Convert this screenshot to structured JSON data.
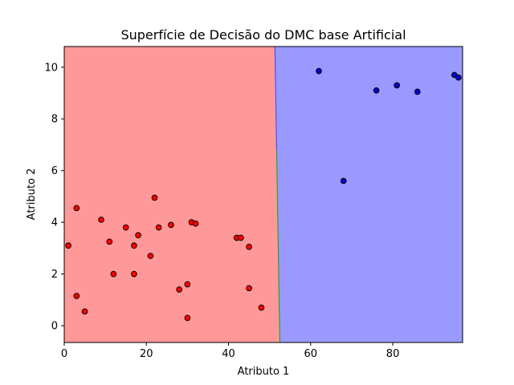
{
  "chart_data": {
    "type": "scatter",
    "title": "Superfície de Decisão do DMC base Artificial",
    "xlabel": "Atributo 1",
    "ylabel": "Atributo 2",
    "xlim": [
      0,
      97
    ],
    "ylim": [
      -0.65,
      10.8
    ],
    "xticks": [
      0,
      20,
      40,
      60,
      80
    ],
    "xtick_labels": [
      "0",
      "20",
      "40",
      "60",
      "80"
    ],
    "yticks": [
      0,
      2,
      4,
      6,
      8,
      10
    ],
    "ytick_labels": [
      "0",
      "2",
      "4",
      "6",
      "8",
      "10"
    ],
    "grid": false,
    "decision_regions": [
      {
        "class": "red",
        "color": "#ff9999",
        "x_range": [
          0,
          52.3
        ]
      },
      {
        "class": "blue",
        "color": "#9999ff",
        "x_range": [
          52.3,
          97
        ]
      }
    ],
    "boundary_line": {
      "x_top": 51.3,
      "x_bottom": 52.5,
      "colors": [
        "#4f4fff",
        "#2ca02c"
      ]
    },
    "series": [
      {
        "color": "#ff0000",
        "points": [
          [
            1,
            3.1
          ],
          [
            3,
            4.55
          ],
          [
            3,
            1.15
          ],
          [
            5,
            0.55
          ],
          [
            9,
            4.1
          ],
          [
            11,
            3.25
          ],
          [
            12,
            2.0
          ],
          [
            15,
            3.8
          ],
          [
            17,
            3.1
          ],
          [
            17,
            2.0
          ],
          [
            18,
            3.5
          ],
          [
            21,
            2.7
          ],
          [
            22,
            4.95
          ],
          [
            23,
            3.8
          ],
          [
            26,
            3.9
          ],
          [
            28,
            1.4
          ],
          [
            30,
            1.6
          ],
          [
            30,
            0.3
          ],
          [
            31,
            4.0
          ],
          [
            32,
            3.95
          ],
          [
            42,
            3.4
          ],
          [
            43,
            3.4
          ],
          [
            45,
            3.05
          ],
          [
            45,
            1.45
          ],
          [
            48,
            0.7
          ]
        ]
      },
      {
        "color": "#0000cc",
        "points": [
          [
            62,
            9.85
          ],
          [
            68,
            5.6
          ],
          [
            76,
            9.1
          ],
          [
            81,
            9.3
          ],
          [
            86,
            9.05
          ],
          [
            95,
            9.7
          ],
          [
            96,
            9.6
          ]
        ]
      }
    ]
  }
}
